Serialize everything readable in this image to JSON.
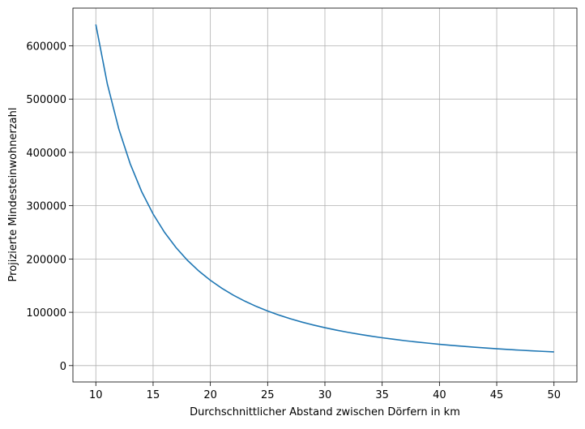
{
  "chart_data": {
    "type": "line",
    "xlabel": "Durchschnittlicher Abstand zwischen Dörfern in km",
    "ylabel": "Projizierte Mindesteinwohnerzahl",
    "x": [
      10,
      11,
      12,
      13,
      14,
      15,
      16,
      17,
      18,
      19,
      20,
      21,
      22,
      23,
      24,
      25,
      26,
      27,
      28,
      29,
      30,
      31,
      32,
      33,
      34,
      35,
      36,
      37,
      38,
      39,
      40,
      41,
      42,
      43,
      44,
      45,
      46,
      47,
      48,
      49,
      50
    ],
    "values": [
      640000,
      528900,
      444400,
      378700,
      326500,
      284400,
      250000,
      221500,
      197500,
      177300,
      160000,
      145100,
      132200,
      121000,
      111100,
      102400,
      94700,
      87800,
      81600,
      76100,
      71100,
      66600,
      62500,
      58800,
      55400,
      52200,
      49400,
      46700,
      44300,
      42100,
      40000,
      38100,
      36300,
      34600,
      33100,
      31600,
      30200,
      29000,
      27800,
      26700,
      25600
    ],
    "color": "#1f77b4",
    "xlim": [
      8,
      52
    ],
    "ylim": [
      -30720,
      670720
    ],
    "xticks": [
      10,
      15,
      20,
      25,
      30,
      35,
      40,
      45,
      50
    ],
    "yticks": [
      0,
      100000,
      200000,
      300000,
      400000,
      500000,
      600000
    ],
    "grid": true
  }
}
